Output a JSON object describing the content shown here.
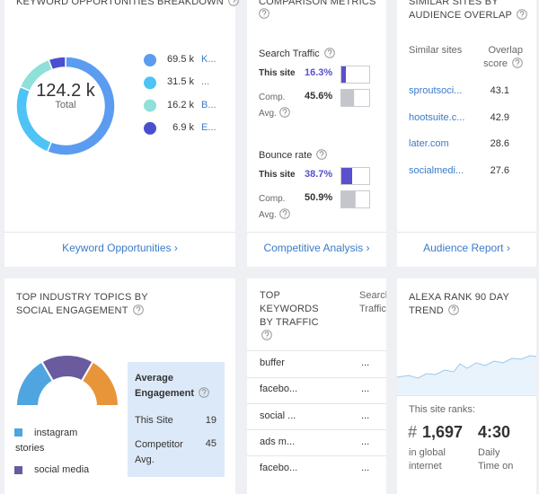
{
  "keyword_card": {
    "title": "KEYWORD OPPORTUNITIES BREAKDOWN",
    "total": "124.2 k",
    "total_label": "Total",
    "segments": {
      "values": [
        69.5,
        31.5,
        16.2,
        6.9
      ],
      "value_labels": [
        "69.5 k",
        "31.5 k",
        "16.2 k",
        "6.9 k"
      ],
      "labels": [
        "K...",
        "...",
        "B...",
        "E..."
      ],
      "colors": [
        "#5b9cf0",
        "#4ec3f5",
        "#8fe0d8",
        "#4a4fcf"
      ]
    },
    "link": "Keyword Opportunities ›"
  },
  "comparison_card": {
    "title": "COMPARISON METRICS",
    "this_color": "#5a4fcf",
    "comp_color": "#c4c6cc",
    "metrics": [
      {
        "name": "Search Traffic",
        "this_label": "This site",
        "this_value": 16.3,
        "this_value_label": "16.3%",
        "comp_label": "Comp. Avg.",
        "comp_value": 45.6,
        "comp_value_label": "45.6%"
      },
      {
        "name": "Bounce rate",
        "this_label": "This site",
        "this_value": 38.7,
        "this_value_label": "38.7%",
        "comp_label": "Comp. Avg.",
        "comp_value": 50.9,
        "comp_value_label": "50.9%"
      }
    ],
    "link": "Competitive Analysis ›"
  },
  "similar_card": {
    "title": "SIMILAR SITES BY AUDIENCE OVERLAP",
    "headers": [
      "Similar sites",
      "Overlap score"
    ],
    "rows": [
      [
        "sproutsoci...",
        "43.1"
      ],
      [
        "hootsuite.c...",
        "42.9"
      ],
      [
        "later.com",
        "28.6"
      ],
      [
        "socialmedi...",
        "27.6"
      ]
    ],
    "link": "Audience Report ›"
  },
  "topics_card": {
    "title": "TOP INDUSTRY TOPICS BY SOCIAL ENGAGEMENT",
    "legend": [
      "instagram stories",
      "social media"
    ],
    "engagement": {
      "title": "Average Engagement",
      "rows": [
        [
          "This Site",
          "19"
        ],
        [
          "Competitor Avg.",
          "45"
        ]
      ]
    }
  },
  "keywords_card": {
    "title": "TOP KEYWORDS BY TRAFFIC",
    "column": "Search Traffic",
    "rows": [
      [
        "buffer",
        "..."
      ],
      [
        "facebo...",
        "..."
      ],
      [
        "social ...",
        "..."
      ],
      [
        "ads m...",
        "..."
      ],
      [
        "facebo...",
        "..."
      ]
    ]
  },
  "rank_card": {
    "title": "ALEXA RANK 90 DAY TREND",
    "subtitle": "This site ranks:",
    "hash": "#",
    "rank": "1,697",
    "rank_label": "in global internet",
    "time": "4:30",
    "time_label": "Daily Time on"
  }
}
